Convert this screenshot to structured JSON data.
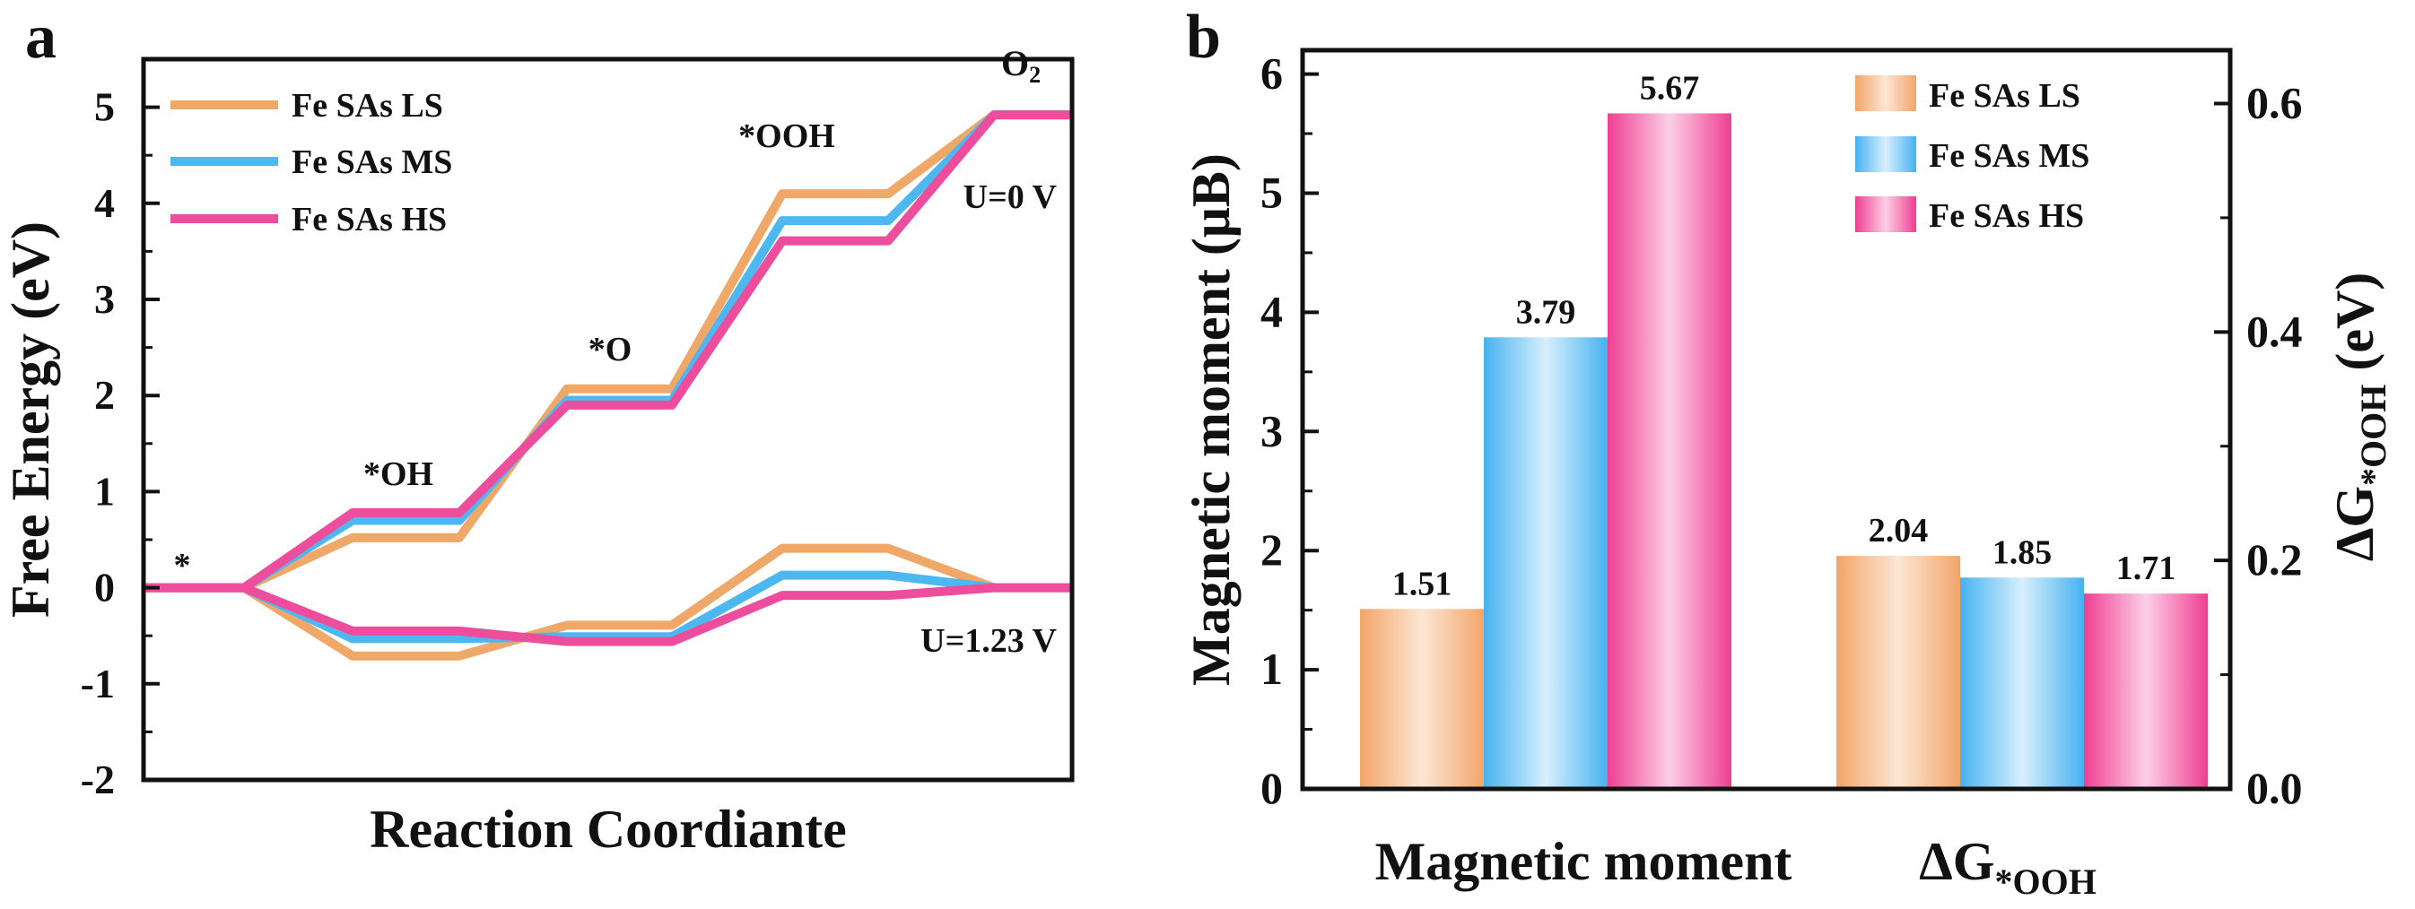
{
  "figure": {
    "panel_a_letter": "a",
    "panel_b_letter": "b"
  },
  "chart_data": [
    {
      "type": "line",
      "subtype": "free-energy-step-diagram",
      "title": "",
      "xlabel": "Reaction Coordiante",
      "ylabel": "Free Energy (eV)",
      "ylim": [
        -2,
        5.5
      ],
      "yticks": [
        "-2",
        "-1",
        "0",
        "1",
        "2",
        "3",
        "4",
        "5"
      ],
      "grid": false,
      "legend_position": "top-left",
      "steps": [
        "*",
        "*OH",
        "*O",
        "*OOH",
        "O2"
      ],
      "step_labels": {
        "star": "*",
        "oh": "*OH",
        "o": "*O",
        "ooh": "*OOH",
        "o2_main": "O",
        "o2_sub": "2"
      },
      "annotations": {
        "u0": "U=0 V",
        "u123": "U=1.23 V"
      },
      "series": [
        {
          "name": "Fe SAs LS",
          "color": "#F0A868",
          "U0": [
            0,
            0.52,
            2.07,
            4.1,
            4.92
          ],
          "U123": [
            0,
            -0.71,
            -0.39,
            0.41,
            0
          ]
        },
        {
          "name": "Fe SAs MS",
          "color": "#4DB8F0",
          "U0": [
            0,
            0.7,
            1.95,
            3.82,
            4.92
          ],
          "U123": [
            0,
            -0.53,
            -0.51,
            0.13,
            0
          ]
        },
        {
          "name": "Fe SAs HS",
          "color": "#EE4D9E",
          "U0": [
            0,
            0.78,
            1.9,
            3.61,
            4.92
          ],
          "U123": [
            0,
            -0.45,
            -0.56,
            -0.08,
            0
          ]
        }
      ]
    },
    {
      "type": "bar",
      "title": "",
      "categories": [
        "Magnetic moment",
        "ΔG*OOH"
      ],
      "category_labels": {
        "mm": "Magnetic moment",
        "dg_main": "ΔG",
        "dg_sub": "*OOH"
      },
      "ylabel_left": "Magnetic moment (μB)",
      "ylabel_right": {
        "main": "ΔG",
        "sub": "*OOH",
        "unit": " (eV)"
      },
      "ylim_left": [
        0,
        6.2
      ],
      "ylim_right": [
        0,
        0.6467
      ],
      "yticks_left": [
        "0",
        "1",
        "2",
        "3",
        "4",
        "5",
        "6"
      ],
      "yticks_right": [
        "0.0",
        "0.2",
        "0.4",
        "0.6"
      ],
      "legend_position": "top-right",
      "grid": false,
      "series": [
        {
          "name": "Fe SAs LS",
          "color_dark": "#F2A56A",
          "color_light": "#FCE6D4",
          "values": [
            1.51,
            2.04
          ],
          "labels": [
            "1.51",
            "2.04"
          ]
        },
        {
          "name": "Fe SAs MS",
          "color_dark": "#45B2F0",
          "color_light": "#D8EFFD",
          "values": [
            3.79,
            1.85
          ],
          "labels": [
            "3.79",
            "1.85"
          ]
        },
        {
          "name": "Fe SAs HS",
          "color_dark": "#EE3F92",
          "color_light": "#FCCFE6",
          "values": [
            5.67,
            1.71
          ],
          "labels": [
            "5.67",
            "1.71"
          ]
        }
      ]
    }
  ]
}
